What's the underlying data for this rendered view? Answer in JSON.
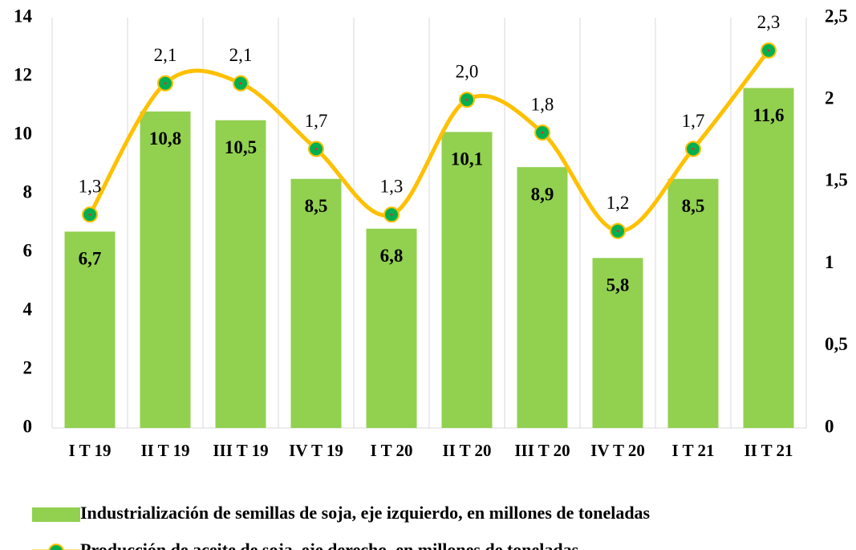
{
  "chart_data": {
    "type": "bar-line",
    "categories": [
      "I T 19",
      "II T 19",
      "III T 19",
      "IV T 19",
      "I T 20",
      "II T 20",
      "III T 20",
      "IV T 20",
      "I T 21",
      "II T 21"
    ],
    "series": [
      {
        "name": "Industrialización de semillas de soja, eje izquierdo, en millones de toneladas",
        "type": "bar",
        "color": "#92d050",
        "values": [
          6.7,
          10.8,
          10.5,
          8.5,
          6.8,
          10.1,
          8.9,
          5.8,
          8.5,
          11.6
        ],
        "value_labels": [
          "6,7",
          "10,8",
          "10,5",
          "8,5",
          "6,8",
          "10,1",
          "8,9",
          "5,8",
          "8,5",
          "11,6"
        ]
      },
      {
        "name": "Producción de aceite de soja, eje derecho, en millones de toneladas",
        "type": "line",
        "axis": "y2",
        "color": "#ffc000",
        "marker_color": "#00b050",
        "smooth": true,
        "values": [
          1.3,
          2.1,
          2.1,
          1.7,
          1.3,
          2.0,
          1.8,
          1.2,
          1.7,
          2.3
        ],
        "value_labels": [
          "1,3",
          "2,1",
          "2,1",
          "1,7",
          "1,3",
          "2,0",
          "1,8",
          "1,2",
          "1,7",
          "2,3"
        ]
      }
    ],
    "ylim": [
      0,
      14
    ],
    "yticks": [
      0,
      2,
      4,
      6,
      8,
      10,
      12,
      14
    ],
    "y2lim": [
      0,
      2.5
    ],
    "y2ticks": [
      0,
      {
        "value": 0.5,
        "label": "0,5"
      },
      1,
      {
        "value": 1.5,
        "label": "1,5"
      },
      2,
      {
        "value": 2.5,
        "label": "2,5"
      }
    ],
    "grid": "x",
    "legend": "bottom"
  }
}
